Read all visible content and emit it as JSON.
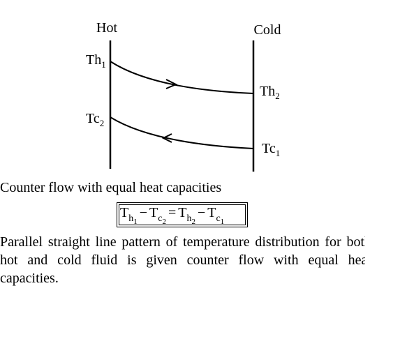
{
  "diagram": {
    "hot_label": "Hot",
    "cold_label": "Cold",
    "labels": [
      {
        "main": "Th",
        "sub": "1"
      },
      {
        "main": "Th",
        "sub": "2"
      },
      {
        "main": "Tc",
        "sub": "2"
      },
      {
        "main": "Tc",
        "sub": "1"
      }
    ]
  },
  "caption": "Counter flow with equal heat capacities",
  "equation": [
    {
      "text": "T",
      "sub": "h",
      "subsub": "1"
    },
    {
      "text": "−"
    },
    {
      "text": "T",
      "sub": "c",
      "subsub": "2"
    },
    {
      "text": "="
    },
    {
      "text": "T",
      "sub": "h",
      "subsub": "2"
    },
    {
      "text": "−"
    },
    {
      "text": "T",
      "sub": "c",
      "subsub": "1"
    }
  ],
  "paragraph": "Parallel straight line pattern of temperature distribution for both hot and cold fluid is given counter flow with equal heat capacities."
}
